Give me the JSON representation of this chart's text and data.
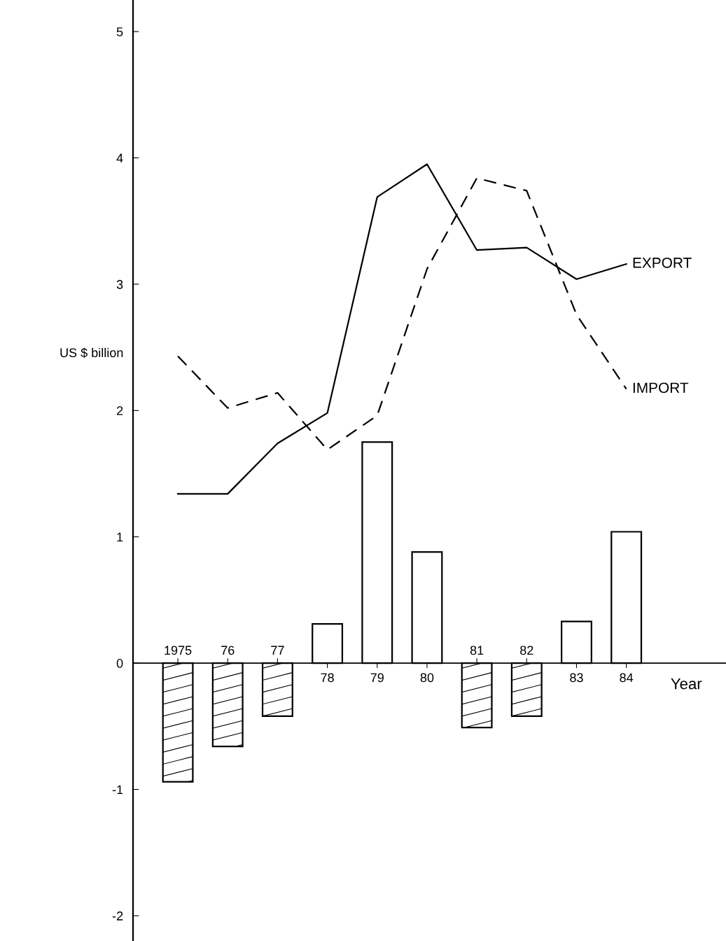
{
  "chart_data": {
    "type": "bar",
    "ylabel": "US $ billion",
    "xlabel": "Year",
    "categories": [
      "1975",
      "76",
      "77",
      "78",
      "79",
      "80",
      "81",
      "82",
      "83",
      "84"
    ],
    "ylim": [
      -2.2,
      5.25
    ],
    "yticks": [
      -2,
      -1,
      0,
      1,
      2,
      3,
      4,
      5
    ],
    "series": [
      {
        "color": "#ffffff",
        "values": [
          -0.94,
          -0.66,
          -0.42,
          0.31,
          1.75,
          0.88,
          -0.51,
          -0.42,
          0.33,
          1.04
        ]
      },
      {
        "type": "line",
        "name": "EXPORT",
        "color": "#000000",
        "line_style": "solid",
        "values": [
          1.34,
          1.34,
          1.74,
          1.98,
          3.69,
          3.95,
          3.27,
          3.29,
          3.04,
          3.16
        ]
      },
      {
        "type": "line",
        "name": "IMPORT",
        "color": "#000000",
        "line_style": "dashed",
        "values": [
          2.43,
          2.02,
          2.14,
          1.69,
          1.96,
          3.12,
          3.84,
          3.74,
          2.76,
          2.17
        ]
      }
    ]
  }
}
